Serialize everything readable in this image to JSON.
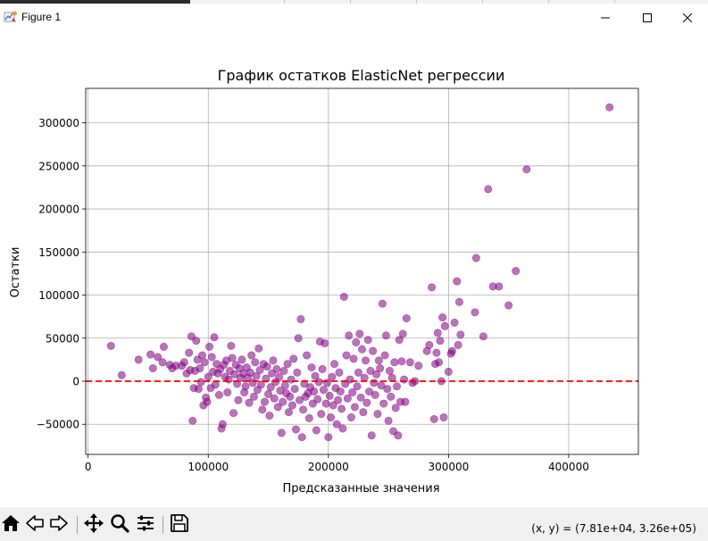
{
  "window": {
    "title": "Figure 1",
    "icons": [
      "figure-app-icon",
      "minimize-icon",
      "maximize-icon",
      "close-icon"
    ]
  },
  "toolbar": {
    "buttons": [
      "home-icon",
      "back-icon",
      "forward-icon",
      "pan-icon",
      "zoom-icon",
      "configure-subplots-icon",
      "save-icon"
    ],
    "coords_text": "(x, y) = (7.81e+04, 3.26e+05)"
  },
  "colors": {
    "points": "#800080",
    "zero_line": "#ff0000",
    "grid": "#b0b0b0"
  },
  "chart_data": {
    "type": "scatter",
    "title": "График остатков ElasticNet регрессии",
    "xlabel": "Предсказанные значения",
    "ylabel": "Остатки",
    "xlim": [
      -2000,
      458000
    ],
    "ylim": [
      -85000,
      340000
    ],
    "xticks": [
      0,
      100000,
      200000,
      300000,
      400000
    ],
    "yticks": [
      -50000,
      0,
      50000,
      100000,
      150000,
      200000,
      250000,
      300000
    ],
    "xtick_labels": [
      "0",
      "100000",
      "200000",
      "300000",
      "400000"
    ],
    "ytick_labels": [
      "−50000",
      "0",
      "50000",
      "100000",
      "150000",
      "200000",
      "250000",
      "300000"
    ],
    "grid": true,
    "reference_line": {
      "y": 0,
      "style": "dashed",
      "color": "red"
    },
    "point_alpha": 0.55,
    "points": [
      [
        19000,
        41000
      ],
      [
        28000,
        7000
      ],
      [
        42000,
        25000
      ],
      [
        52000,
        31000
      ],
      [
        54000,
        15000
      ],
      [
        58000,
        28000
      ],
      [
        62000,
        22000
      ],
      [
        63000,
        40000
      ],
      [
        68000,
        19000
      ],
      [
        70000,
        15000
      ],
      [
        73000,
        18000
      ],
      [
        78000,
        18000
      ],
      [
        80000,
        22000
      ],
      [
        82000,
        9000
      ],
      [
        84000,
        33000
      ],
      [
        85000,
        13000
      ],
      [
        86000,
        52000
      ],
      [
        87000,
        -46000
      ],
      [
        88000,
        -8000
      ],
      [
        89000,
        12000
      ],
      [
        90000,
        47000
      ],
      [
        91000,
        25000
      ],
      [
        92000,
        -9000
      ],
      [
        93000,
        15000
      ],
      [
        94000,
        -1000
      ],
      [
        95000,
        30000
      ],
      [
        96000,
        -28000
      ],
      [
        97000,
        22000
      ],
      [
        98000,
        -19000
      ],
      [
        99000,
        -24000
      ],
      [
        100000,
        5000
      ],
      [
        101000,
        40000
      ],
      [
        102000,
        -8000
      ],
      [
        103000,
        28000
      ],
      [
        104000,
        11000
      ],
      [
        105000,
        51000
      ],
      [
        106000,
        -4000
      ],
      [
        107000,
        20000
      ],
      [
        108000,
        9000
      ],
      [
        109000,
        -16000
      ],
      [
        110000,
        14000
      ],
      [
        111000,
        -55000
      ],
      [
        112000,
        -50000
      ],
      [
        113000,
        19000
      ],
      [
        114000,
        5000
      ],
      [
        115000,
        24000
      ],
      [
        116000,
        -13000
      ],
      [
        117000,
        2000
      ],
      [
        118000,
        12000
      ],
      [
        119000,
        41000
      ],
      [
        120000,
        27000
      ],
      [
        121000,
        -37000
      ],
      [
        122000,
        8000
      ],
      [
        123000,
        19000
      ],
      [
        124000,
        -3000
      ],
      [
        125000,
        -22000
      ],
      [
        126000,
        15000
      ],
      [
        127000,
        4000
      ],
      [
        128000,
        25000
      ],
      [
        129000,
        9000
      ],
      [
        130000,
        -13000
      ],
      [
        131000,
        -6000
      ],
      [
        132000,
        16000
      ],
      [
        133000,
        4000
      ],
      [
        134000,
        -25000
      ],
      [
        135000,
        10000
      ],
      [
        136000,
        30000
      ],
      [
        137000,
        -2000
      ],
      [
        138000,
        -18000
      ],
      [
        139000,
        22000
      ],
      [
        140000,
        6000
      ],
      [
        141000,
        -10000
      ],
      [
        142000,
        38000
      ],
      [
        143000,
        13000
      ],
      [
        144000,
        -4000
      ],
      [
        145000,
        -33000
      ],
      [
        146000,
        20000
      ],
      [
        147000,
        -24000
      ],
      [
        148000,
        3000
      ],
      [
        149000,
        17000
      ],
      [
        150000,
        -15000
      ],
      [
        151000,
        -40000
      ],
      [
        152000,
        -7000
      ],
      [
        153000,
        9000
      ],
      [
        154000,
        24000
      ],
      [
        155000,
        -20000
      ],
      [
        156000,
        -1000
      ],
      [
        157000,
        14000
      ],
      [
        158000,
        -30000
      ],
      [
        159000,
        5000
      ],
      [
        160000,
        -11000
      ],
      [
        161000,
        -60000
      ],
      [
        162000,
        -24000
      ],
      [
        163000,
        12000
      ],
      [
        164000,
        -5000
      ],
      [
        165000,
        -14000
      ],
      [
        166000,
        20000
      ],
      [
        167000,
        -36000
      ],
      [
        168000,
        -18000
      ],
      [
        169000,
        2000
      ],
      [
        170000,
        -28000
      ],
      [
        171000,
        26000
      ],
      [
        172000,
        -9000
      ],
      [
        173000,
        -56000
      ],
      [
        174000,
        10000
      ],
      [
        175000,
        50000
      ],
      [
        176000,
        -22000
      ],
      [
        177000,
        72000
      ],
      [
        178000,
        -65000
      ],
      [
        179000,
        -33000
      ],
      [
        180000,
        -3000
      ],
      [
        181000,
        -18000
      ],
      [
        182000,
        30000
      ],
      [
        183000,
        -14000
      ],
      [
        184000,
        -43000
      ],
      [
        185000,
        -7000
      ],
      [
        186000,
        16000
      ],
      [
        187000,
        -26000
      ],
      [
        188000,
        -12000
      ],
      [
        189000,
        6000
      ],
      [
        190000,
        -57000
      ],
      [
        191000,
        -21000
      ],
      [
        192000,
        -1000
      ],
      [
        193000,
        46000
      ],
      [
        194000,
        -38000
      ],
      [
        195000,
        14000
      ],
      [
        196000,
        -10000
      ],
      [
        197000,
        44000
      ],
      [
        198000,
        -26000
      ],
      [
        199000,
        -2000
      ],
      [
        200000,
        -65000
      ],
      [
        201000,
        -17000
      ],
      [
        202000,
        -42000
      ],
      [
        203000,
        5000
      ],
      [
        204000,
        -28000
      ],
      [
        205000,
        20000
      ],
      [
        206000,
        -8000
      ],
      [
        207000,
        -50000
      ],
      [
        208000,
        -22000
      ],
      [
        209000,
        10000
      ],
      [
        210000,
        -12000
      ],
      [
        211000,
        -32000
      ],
      [
        212000,
        -55000
      ],
      [
        213000,
        98000
      ],
      [
        214000,
        -3000
      ],
      [
        215000,
        30000
      ],
      [
        216000,
        -20000
      ],
      [
        217000,
        53000
      ],
      [
        218000,
        2000
      ],
      [
        219000,
        -42000
      ],
      [
        220000,
        -13000
      ],
      [
        221000,
        26000
      ],
      [
        222000,
        -30000
      ],
      [
        223000,
        45000
      ],
      [
        224000,
        -6000
      ],
      [
        225000,
        10000
      ],
      [
        226000,
        55000
      ],
      [
        227000,
        -19000
      ],
      [
        228000,
        37000
      ],
      [
        229000,
        -36000
      ],
      [
        230000,
        4000
      ],
      [
        231000,
        24000
      ],
      [
        232000,
        -25000
      ],
      [
        233000,
        48000
      ],
      [
        234000,
        -12000
      ],
      [
        235000,
        12000
      ],
      [
        236000,
        -63000
      ],
      [
        237000,
        35000
      ],
      [
        238000,
        -2000
      ],
      [
        239000,
        -16000
      ],
      [
        240000,
        8000
      ],
      [
        241000,
        -38000
      ],
      [
        242000,
        24000
      ],
      [
        243000,
        15000
      ],
      [
        244000,
        -5000
      ],
      [
        245000,
        90000
      ],
      [
        246000,
        -26000
      ],
      [
        247000,
        30000
      ],
      [
        248000,
        53000
      ],
      [
        249000,
        -9000
      ],
      [
        250000,
        -46000
      ],
      [
        251000,
        12000
      ],
      [
        252000,
        -18000
      ],
      [
        253000,
        4000
      ],
      [
        254000,
        -58000
      ],
      [
        255000,
        22000
      ],
      [
        256000,
        -31000
      ],
      [
        257000,
        -6000
      ],
      [
        258000,
        -63000
      ],
      [
        259000,
        48000
      ],
      [
        260000,
        -24000
      ],
      [
        261000,
        23000
      ],
      [
        262000,
        55000
      ],
      [
        263000,
        2000
      ],
      [
        264000,
        -24000
      ],
      [
        265000,
        73000
      ],
      [
        268000,
        22000
      ],
      [
        270000,
        -2000
      ],
      [
        272000,
        0
      ],
      [
        275000,
        18000
      ],
      [
        282000,
        35000
      ],
      [
        284000,
        42000
      ],
      [
        286000,
        109000
      ],
      [
        288000,
        -44000
      ],
      [
        289000,
        20000
      ],
      [
        290000,
        33000
      ],
      [
        291000,
        56000
      ],
      [
        292000,
        22000
      ],
      [
        293000,
        47000
      ],
      [
        294000,
        0
      ],
      [
        295000,
        74000
      ],
      [
        296000,
        -42000
      ],
      [
        297000,
        64000
      ],
      [
        300000,
        11000
      ],
      [
        302000,
        32000
      ],
      [
        303000,
        35000
      ],
      [
        305000,
        68000
      ],
      [
        307000,
        116000
      ],
      [
        308000,
        42000
      ],
      [
        309000,
        92000
      ],
      [
        310000,
        54000
      ],
      [
        322000,
        80000
      ],
      [
        323000,
        143000
      ],
      [
        329000,
        52000
      ],
      [
        333000,
        223000
      ],
      [
        337000,
        110000
      ],
      [
        342000,
        110000
      ],
      [
        350000,
        88000
      ],
      [
        356000,
        128000
      ],
      [
        365000,
        246000
      ],
      [
        434000,
        318000
      ]
    ]
  }
}
